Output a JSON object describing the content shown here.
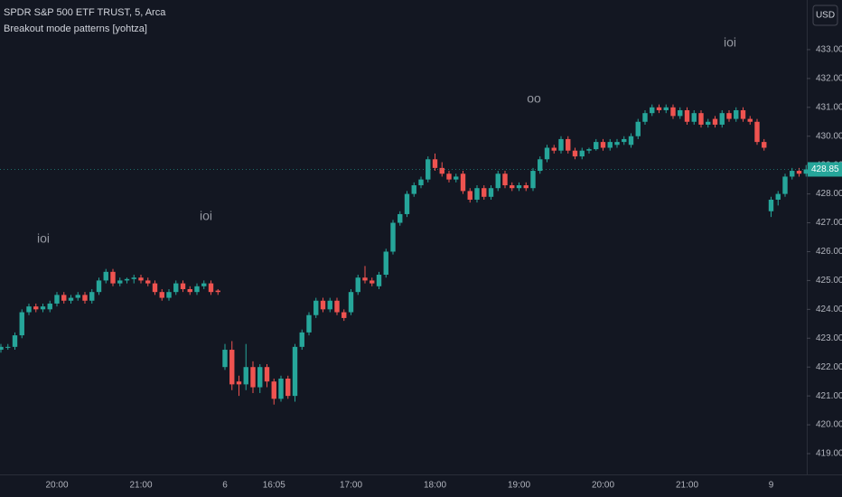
{
  "chart_data": {
    "type": "candlestick",
    "title": "SPDR S&P 500 ETF TRUST, 5, Arca",
    "subtitle": "Breakout mode patterns [yohtza]",
    "currency": "USD",
    "up_color": "#26a69a",
    "down_color": "#ef5350",
    "last_price": 428.85,
    "annotations": [
      "ioi",
      "ioi",
      "oo",
      "ioi"
    ],
    "categories": [
      null,
      null,
      null,
      null,
      null,
      null,
      null,
      null,
      "20:00",
      null,
      null,
      null,
      null,
      null,
      null,
      null,
      null,
      null,
      null,
      null,
      "21:00",
      null,
      null,
      null,
      null,
      null,
      null,
      null,
      null,
      null,
      null,
      null,
      "6",
      null,
      null,
      null,
      null,
      null,
      null,
      "16:05",
      null,
      null,
      null,
      null,
      null,
      null,
      null,
      null,
      null,
      null,
      "17:00",
      null,
      null,
      null,
      null,
      null,
      null,
      null,
      null,
      null,
      null,
      null,
      "18:00",
      null,
      null,
      null,
      null,
      null,
      null,
      null,
      null,
      null,
      null,
      null,
      "19:00",
      null,
      null,
      null,
      null,
      null,
      null,
      null,
      null,
      null,
      null,
      null,
      "20:00",
      null,
      null,
      null,
      null,
      null,
      null,
      null,
      null,
      null,
      null,
      null,
      "21:00",
      null,
      null,
      null,
      null,
      null,
      null,
      null,
      null,
      null,
      null,
      null,
      "9",
      null,
      null,
      null,
      null,
      null
    ],
    "open": [
      422.6,
      422.7,
      422.7,
      423.1,
      423.9,
      424.1,
      424.0,
      424.0,
      424.2,
      424.5,
      424.3,
      424.4,
      424.5,
      424.3,
      424.6,
      425.0,
      425.3,
      424.9,
      425.0,
      425.05,
      425.1,
      425.0,
      424.9,
      424.6,
      424.4,
      424.6,
      424.9,
      424.7,
      424.6,
      424.8,
      424.9,
      424.65,
      422.0,
      422.6,
      421.5,
      421.4,
      422.0,
      421.3,
      422.0,
      421.5,
      420.9,
      421.6,
      421.0,
      422.7,
      423.2,
      423.8,
      424.3,
      424.0,
      424.3,
      423.9,
      423.9,
      424.6,
      425.1,
      425.0,
      424.8,
      425.2,
      426.0,
      427.0,
      427.3,
      428.0,
      428.3,
      428.5,
      429.2,
      428.9,
      428.7,
      428.5,
      428.7,
      428.1,
      427.8,
      428.2,
      427.9,
      428.2,
      428.7,
      428.3,
      428.2,
      428.3,
      428.2,
      428.8,
      429.2,
      429.6,
      429.5,
      429.9,
      429.5,
      429.3,
      429.5,
      429.55,
      429.8,
      429.6,
      429.7,
      429.8,
      429.7,
      430.0,
      430.5,
      430.8,
      431.0,
      430.9,
      431.0,
      430.7,
      430.9,
      430.5,
      430.8,
      430.4,
      430.6,
      430.4,
      430.8,
      430.6,
      430.9,
      430.6,
      430.5,
      429.8,
      427.4,
      427.8,
      428.0,
      428.6,
      428.8,
      428.7
    ],
    "high": [
      422.8,
      422.8,
      423.2,
      424.0,
      424.2,
      424.2,
      424.2,
      424.3,
      424.6,
      424.6,
      424.5,
      424.6,
      424.6,
      424.7,
      425.1,
      425.4,
      425.4,
      425.1,
      425.1,
      425.2,
      425.2,
      425.1,
      425.0,
      424.7,
      424.7,
      425.0,
      425.0,
      424.8,
      424.9,
      425.0,
      425.0,
      424.7,
      422.8,
      422.9,
      421.7,
      422.8,
      422.2,
      422.1,
      422.1,
      421.6,
      421.7,
      421.7,
      422.8,
      423.3,
      423.9,
      424.4,
      424.4,
      424.4,
      424.4,
      424.0,
      424.7,
      425.2,
      425.5,
      425.1,
      425.3,
      426.1,
      427.1,
      427.4,
      428.1,
      428.4,
      428.6,
      429.3,
      429.4,
      429.1,
      428.8,
      428.7,
      428.8,
      428.2,
      428.3,
      428.3,
      428.3,
      428.8,
      428.8,
      428.4,
      428.4,
      428.4,
      428.9,
      429.3,
      429.7,
      429.7,
      430.0,
      430.0,
      429.6,
      429.6,
      429.6,
      429.9,
      429.9,
      429.9,
      429.9,
      430.0,
      430.1,
      430.6,
      430.9,
      431.1,
      431.1,
      431.1,
      431.1,
      431.0,
      431.0,
      430.9,
      430.9,
      430.6,
      430.7,
      430.9,
      430.9,
      431.0,
      431.0,
      430.7,
      430.6,
      429.9,
      427.9,
      428.1,
      428.7,
      428.9,
      428.9,
      429.0
    ],
    "low": [
      422.5,
      422.6,
      422.6,
      423.0,
      423.8,
      423.9,
      423.9,
      423.9,
      424.1,
      424.2,
      424.2,
      424.3,
      424.2,
      424.2,
      424.5,
      424.9,
      424.8,
      424.8,
      424.9,
      424.9,
      424.9,
      424.8,
      424.5,
      424.3,
      424.3,
      424.5,
      424.6,
      424.5,
      424.5,
      424.7,
      424.5,
      424.5,
      421.9,
      421.2,
      421.0,
      421.2,
      421.1,
      421.1,
      421.3,
      420.7,
      420.8,
      420.9,
      420.8,
      422.6,
      423.1,
      423.7,
      423.9,
      423.9,
      423.8,
      423.6,
      423.8,
      424.5,
      424.9,
      424.8,
      424.7,
      425.1,
      425.9,
      426.9,
      427.2,
      427.9,
      428.2,
      428.4,
      428.8,
      428.6,
      428.4,
      428.4,
      428.0,
      427.7,
      427.7,
      427.8,
      427.8,
      428.1,
      428.2,
      428.1,
      428.1,
      428.1,
      428.1,
      428.7,
      429.1,
      429.4,
      429.4,
      429.4,
      429.2,
      429.2,
      429.4,
      429.5,
      429.5,
      429.5,
      429.6,
      429.7,
      429.6,
      429.9,
      430.4,
      430.7,
      430.8,
      430.8,
      430.6,
      430.6,
      430.4,
      430.4,
      430.3,
      430.3,
      430.3,
      430.3,
      430.5,
      430.5,
      430.5,
      430.4,
      429.7,
      429.5,
      427.2,
      427.6,
      427.9,
      428.5,
      428.6,
      428.6
    ],
    "close": [
      422.7,
      422.7,
      423.1,
      423.9,
      424.1,
      424.0,
      424.1,
      424.2,
      424.5,
      424.3,
      424.4,
      424.5,
      424.3,
      424.6,
      425.0,
      425.3,
      424.9,
      425.0,
      425.05,
      425.1,
      425.0,
      424.9,
      424.6,
      424.4,
      424.6,
      424.9,
      424.7,
      424.6,
      424.8,
      424.9,
      424.6,
      424.6,
      422.6,
      421.4,
      421.4,
      422.0,
      421.3,
      422.0,
      421.5,
      420.9,
      421.6,
      421.0,
      422.7,
      423.2,
      423.8,
      424.3,
      424.0,
      424.3,
      423.9,
      423.7,
      424.6,
      425.1,
      425.0,
      424.9,
      425.2,
      426.0,
      427.0,
      427.3,
      428.0,
      428.3,
      428.5,
      429.2,
      428.9,
      428.7,
      428.5,
      428.6,
      428.1,
      427.8,
      428.2,
      427.9,
      428.2,
      428.7,
      428.3,
      428.2,
      428.3,
      428.2,
      428.8,
      429.2,
      429.6,
      429.5,
      429.9,
      429.5,
      429.3,
      429.5,
      429.55,
      429.8,
      429.6,
      429.8,
      429.8,
      429.9,
      430.0,
      430.5,
      430.8,
      431.0,
      430.9,
      431.0,
      430.7,
      430.9,
      430.5,
      430.8,
      430.4,
      430.5,
      430.4,
      430.8,
      430.6,
      430.9,
      430.6,
      430.5,
      429.8,
      429.6,
      427.8,
      428.0,
      428.6,
      428.8,
      428.7,
      428.85
    ],
    "ylim": [
      418.28,
      434.72
    ],
    "yticks": [
      {
        "value": 419,
        "label": "419.00"
      },
      {
        "value": 420,
        "label": "420.00"
      },
      {
        "value": 421,
        "label": "421.00"
      },
      {
        "value": 422,
        "label": "422.00"
      },
      {
        "value": 423,
        "label": "423.00"
      },
      {
        "value": 424,
        "label": "424.00"
      },
      {
        "value": 425,
        "label": "425.00"
      },
      {
        "value": 426,
        "label": "426.00"
      },
      {
        "value": 427,
        "label": "427.00"
      },
      {
        "value": 428,
        "label": "428.00"
      },
      {
        "value": 429,
        "label": "429.00"
      },
      {
        "value": 430,
        "label": "430.00"
      },
      {
        "value": 431,
        "label": "431.00"
      },
      {
        "value": 432,
        "label": "432.00"
      },
      {
        "value": 433,
        "label": "433.00"
      }
    ]
  }
}
